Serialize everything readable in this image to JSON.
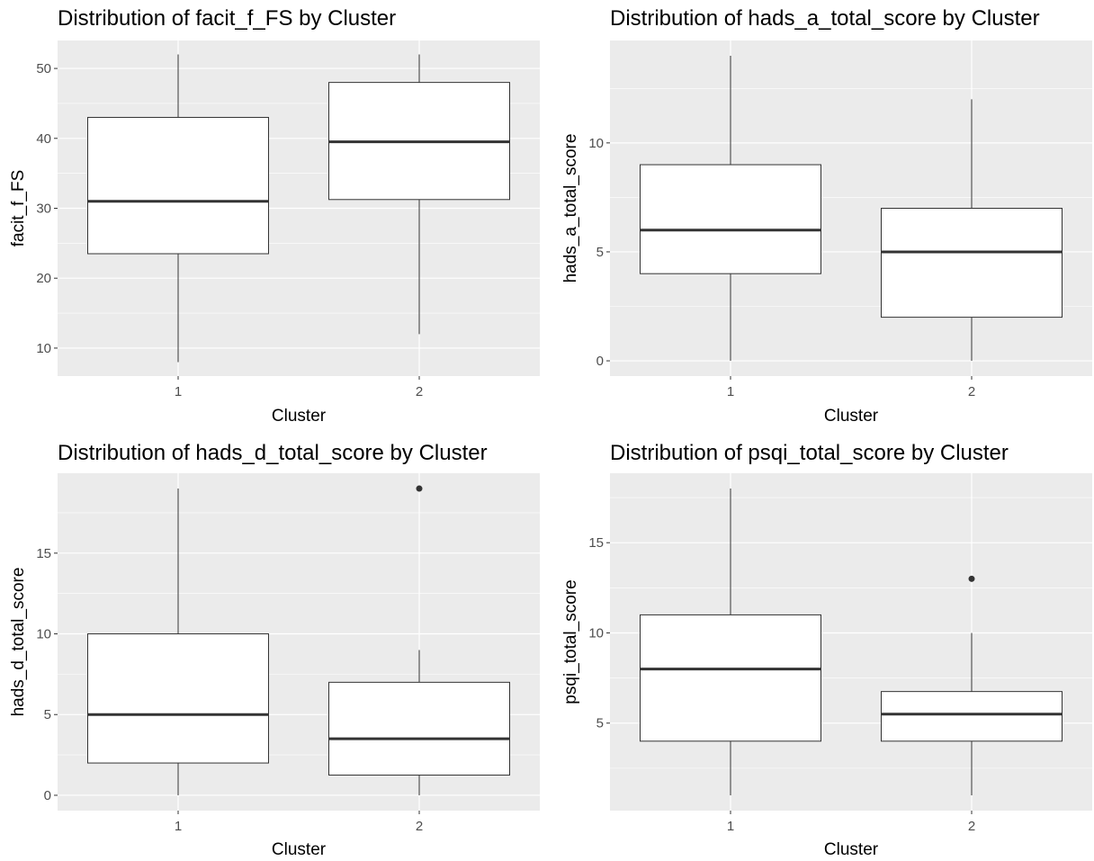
{
  "chart_data": [
    {
      "type": "box",
      "title": "Distribution of facit_f_FS by Cluster",
      "xlabel": "Cluster",
      "ylabel": "facit_f_FS",
      "categories": [
        "1",
        "2"
      ],
      "ylim": [
        6,
        54
      ],
      "yticks": [
        10,
        20,
        30,
        40,
        50
      ],
      "grid": true,
      "boxes": [
        {
          "category": "1",
          "min": 8,
          "q1": 23.5,
          "median": 31,
          "q3": 43,
          "max": 52,
          "outliers": []
        },
        {
          "category": "2",
          "min": 12,
          "q1": 31.25,
          "median": 39.5,
          "q3": 48,
          "max": 52,
          "outliers": []
        }
      ]
    },
    {
      "type": "box",
      "title": "Distribution of hads_a_total_score by Cluster",
      "xlabel": "Cluster",
      "ylabel": "hads_a_total_score",
      "categories": [
        "1",
        "2"
      ],
      "ylim": [
        -0.7,
        14.7
      ],
      "yticks": [
        0,
        5,
        10
      ],
      "grid": true,
      "boxes": [
        {
          "category": "1",
          "min": 0,
          "q1": 4,
          "median": 6,
          "q3": 9,
          "max": 14,
          "outliers": []
        },
        {
          "category": "2",
          "min": 0,
          "q1": 2,
          "median": 5,
          "q3": 7,
          "max": 12,
          "outliers": []
        }
      ]
    },
    {
      "type": "box",
      "title": "Distribution of hads_d_total_score by Cluster",
      "xlabel": "Cluster",
      "ylabel": "hads_d_total_score",
      "categories": [
        "1",
        "2"
      ],
      "ylim": [
        -0.95,
        19.95
      ],
      "yticks": [
        0,
        5,
        10,
        15
      ],
      "grid": true,
      "boxes": [
        {
          "category": "1",
          "min": 0,
          "q1": 2,
          "median": 5,
          "q3": 10,
          "max": 19,
          "outliers": []
        },
        {
          "category": "2",
          "min": 0,
          "q1": 1.25,
          "median": 3.5,
          "q3": 7,
          "max": 9,
          "outliers": [
            19
          ]
        }
      ]
    },
    {
      "type": "box",
      "title": "Distribution of psqi_total_score by Cluster",
      "xlabel": "Cluster",
      "ylabel": "psqi_total_score",
      "categories": [
        "1",
        "2"
      ],
      "ylim": [
        0.15,
        18.85
      ],
      "yticks": [
        5,
        10,
        15
      ],
      "grid": true,
      "boxes": [
        {
          "category": "1",
          "min": 1,
          "q1": 4,
          "median": 8,
          "q3": 11,
          "max": 18,
          "outliers": []
        },
        {
          "category": "2",
          "min": 1,
          "q1": 4,
          "median": 5.5,
          "q3": 6.75,
          "max": 10,
          "outliers": [
            13
          ]
        }
      ]
    }
  ]
}
